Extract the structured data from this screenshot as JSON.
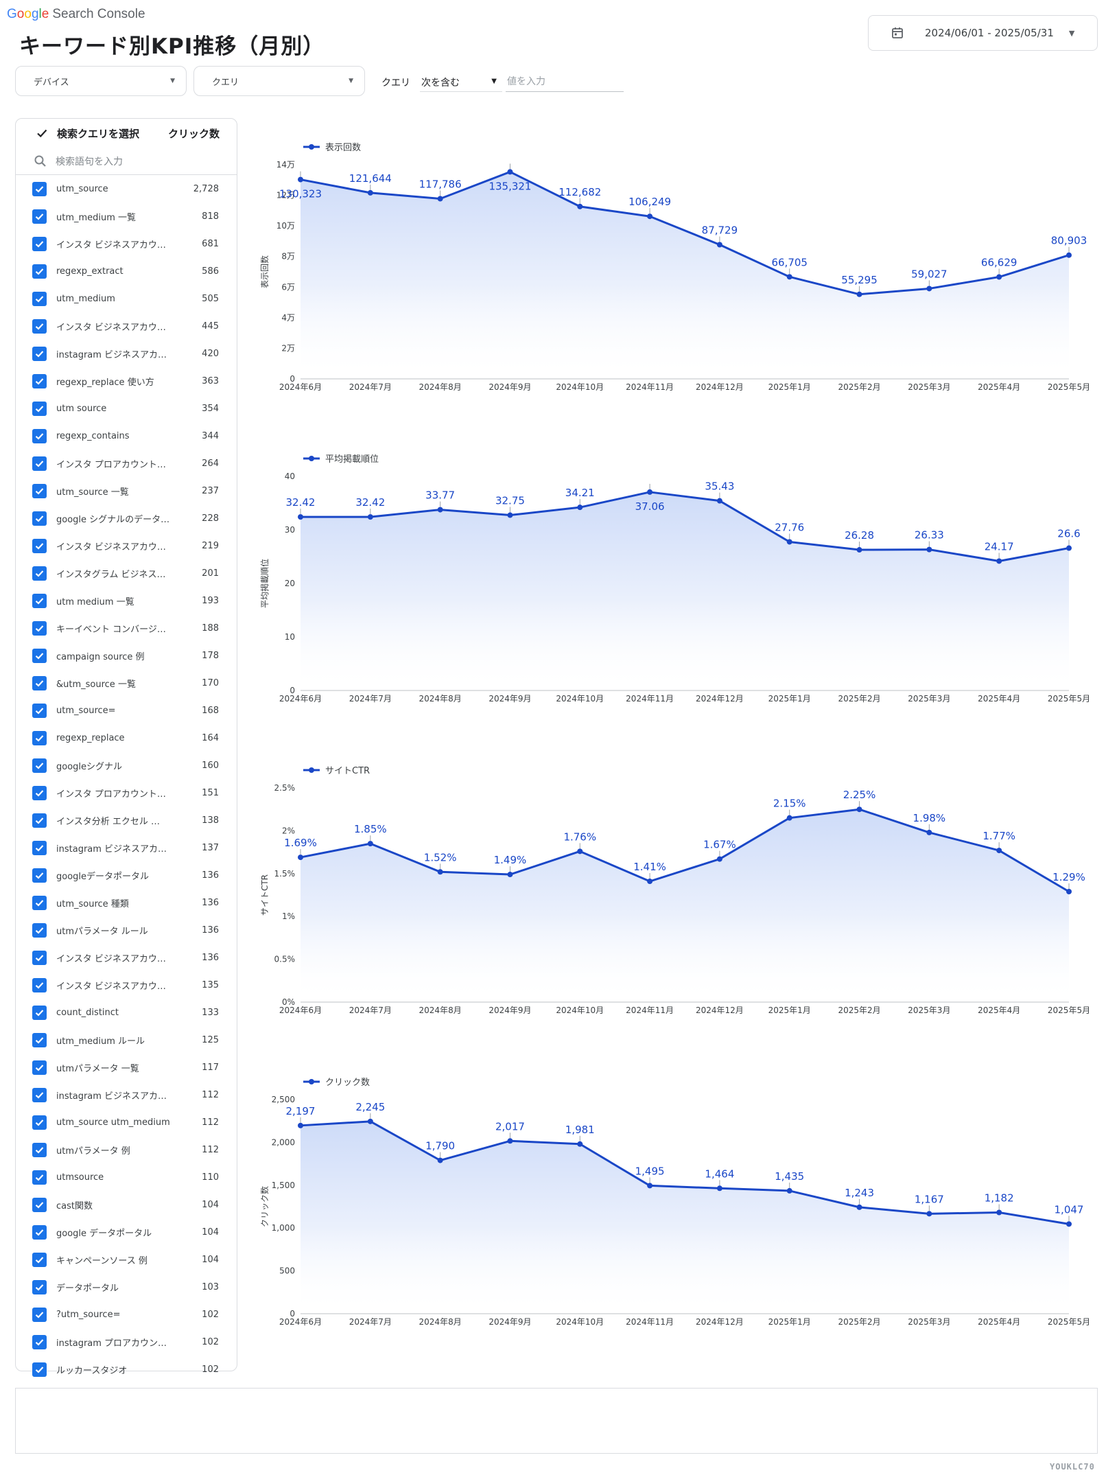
{
  "brand": {
    "g1": "G",
    "g2": "o",
    "g3": "o",
    "g4": "g",
    "g5": "l",
    "g6": "e",
    "product": "Search Console"
  },
  "page_title": "キーワード別KPI推移（月別）",
  "date_range": "2024/06/01 - 2025/05/31",
  "filters": {
    "device": "デバイス",
    "query": "クエリ",
    "query_label": "クエリ",
    "operator": "次を含む",
    "value_placeholder": "値を入力"
  },
  "panel": {
    "header_label": "検索クエリを選択",
    "clicks_header": "クリック数",
    "search_placeholder": "検索語句を入力",
    "rows": [
      {
        "label": "utm_source",
        "value": "2,728"
      },
      {
        "label": "utm_medium 一覧",
        "value": "818"
      },
      {
        "label": "インスタ ビジネスアカウ…",
        "value": "681"
      },
      {
        "label": "regexp_extract",
        "value": "586"
      },
      {
        "label": "utm_medium",
        "value": "505"
      },
      {
        "label": "インスタ ビジネスアカウ…",
        "value": "445"
      },
      {
        "label": "instagram ビジネスアカ…",
        "value": "420"
      },
      {
        "label": "regexp_replace 使い方",
        "value": "363"
      },
      {
        "label": "utm source",
        "value": "354"
      },
      {
        "label": "regexp_contains",
        "value": "344"
      },
      {
        "label": "インスタ プロアカウント…",
        "value": "264"
      },
      {
        "label": "utm_source 一覧",
        "value": "237"
      },
      {
        "label": "google シグナルのデータ…",
        "value": "228"
      },
      {
        "label": "インスタ ビジネスアカウ…",
        "value": "219"
      },
      {
        "label": "インスタグラム ビジネス…",
        "value": "201"
      },
      {
        "label": "utm medium 一覧",
        "value": "193"
      },
      {
        "label": "キーイベント コンバージ…",
        "value": "188"
      },
      {
        "label": "campaign source 例",
        "value": "178"
      },
      {
        "label": "&utm_source 一覧",
        "value": "170"
      },
      {
        "label": "utm_source=",
        "value": "168"
      },
      {
        "label": "regexp_replace",
        "value": "164"
      },
      {
        "label": "googleシグナル",
        "value": "160"
      },
      {
        "label": "インスタ プロアカウント…",
        "value": "151"
      },
      {
        "label": "インスタ分析 エクセル …",
        "value": "138"
      },
      {
        "label": "instagram ビジネスアカ…",
        "value": "137"
      },
      {
        "label": "googleデータポータル",
        "value": "136"
      },
      {
        "label": "utm_source 種類",
        "value": "136"
      },
      {
        "label": "utmパラメータ ルール",
        "value": "136"
      },
      {
        "label": "インスタ ビジネスアカウ…",
        "value": "136"
      },
      {
        "label": "インスタ ビジネスアカウ…",
        "value": "135"
      },
      {
        "label": "count_distinct",
        "value": "133"
      },
      {
        "label": "utm_medium ルール",
        "value": "125"
      },
      {
        "label": "utmパラメータ 一覧",
        "value": "117"
      },
      {
        "label": "instagram ビジネスアカ…",
        "value": "112"
      },
      {
        "label": "utm_source utm_medium",
        "value": "112"
      },
      {
        "label": "utmパラメータ 例",
        "value": "112"
      },
      {
        "label": "utmsource",
        "value": "110"
      },
      {
        "label": "cast関数",
        "value": "104"
      },
      {
        "label": "google データポータル",
        "value": "104"
      },
      {
        "label": "キャンペーンソース 例",
        "value": "104"
      },
      {
        "label": "データポータル",
        "value": "103"
      },
      {
        "label": "?utm_source=",
        "value": "102"
      },
      {
        "label": "instagram プロアカウン…",
        "value": "102"
      },
      {
        "label": "ルッカースタジオ",
        "value": "102"
      }
    ]
  },
  "colors": {
    "line": "#1a47c7",
    "accent": "#1a73e8",
    "fill_top": "#c5d5f7"
  },
  "chart_data": [
    {
      "type": "area",
      "series_name": "表示回数",
      "ylabel": "表示回数",
      "categories": [
        "2024年6月",
        "2024年7月",
        "2024年8月",
        "2024年9月",
        "2024年10月",
        "2024年11月",
        "2024年12月",
        "2025年1月",
        "2025年2月",
        "2025年3月",
        "2025年4月",
        "2025年5月"
      ],
      "values": [
        130323,
        121644,
        117786,
        135321,
        112682,
        106249,
        87729,
        66705,
        55295,
        59027,
        66629,
        80903
      ],
      "labels": [
        "130,323",
        "121,644",
        "117,786",
        "135,321",
        "112,682",
        "106,249",
        "87,729",
        "66,705",
        "55,295",
        "59,027",
        "66,629",
        "80,903"
      ],
      "label_pos": [
        "below",
        "above",
        "above",
        "below",
        "above",
        "above",
        "above",
        "above",
        "above",
        "above",
        "above",
        "above"
      ],
      "ylim": [
        0,
        140000
      ],
      "ticks": [
        0,
        20000,
        40000,
        60000,
        80000,
        100000,
        120000,
        140000
      ],
      "tick_labels": [
        "0",
        "2万",
        "4万",
        "6万",
        "8万",
        "10万",
        "12万",
        "14万"
      ]
    },
    {
      "type": "area",
      "series_name": "平均掲載順位",
      "ylabel": "平均掲載順位",
      "categories": [
        "2024年6月",
        "2024年7月",
        "2024年8月",
        "2024年9月",
        "2024年10月",
        "2024年11月",
        "2024年12月",
        "2025年1月",
        "2025年2月",
        "2025年3月",
        "2025年4月",
        "2025年5月"
      ],
      "values": [
        32.42,
        32.42,
        33.77,
        32.75,
        34.21,
        37.06,
        35.43,
        27.76,
        26.28,
        26.33,
        24.17,
        26.6
      ],
      "labels": [
        "32.42",
        "32.42",
        "33.77",
        "32.75",
        "34.21",
        "37.06",
        "35.43",
        "27.76",
        "26.28",
        "26.33",
        "24.17",
        "26.6"
      ],
      "label_pos": [
        "above",
        "above",
        "above",
        "above",
        "above",
        "below",
        "above",
        "above",
        "above",
        "above",
        "above",
        "above"
      ],
      "ylim": [
        0,
        40
      ],
      "ticks": [
        0,
        10,
        20,
        30,
        40
      ],
      "tick_labels": [
        "0",
        "10",
        "20",
        "30",
        "40"
      ]
    },
    {
      "type": "area",
      "series_name": "サイトCTR",
      "ylabel": "サイトCTR",
      "categories": [
        "2024年6月",
        "2024年7月",
        "2024年8月",
        "2024年9月",
        "2024年10月",
        "2024年11月",
        "2024年12月",
        "2025年1月",
        "2025年2月",
        "2025年3月",
        "2025年4月",
        "2025年5月"
      ],
      "values": [
        1.69,
        1.85,
        1.52,
        1.49,
        1.76,
        1.41,
        1.67,
        2.15,
        2.25,
        1.98,
        1.77,
        1.29
      ],
      "labels": [
        "1.69%",
        "1.85%",
        "1.52%",
        "1.49%",
        "1.76%",
        "1.41%",
        "1.67%",
        "2.15%",
        "2.25%",
        "1.98%",
        "1.77%",
        "1.29%"
      ],
      "label_pos": [
        "above",
        "above",
        "above",
        "above",
        "above",
        "above",
        "above",
        "above",
        "above",
        "above",
        "above",
        "above"
      ],
      "ylim": [
        0,
        2.5
      ],
      "ticks": [
        0,
        0.5,
        1,
        1.5,
        2,
        2.5
      ],
      "tick_labels": [
        "0%",
        "0.5%",
        "1%",
        "1.5%",
        "2%",
        "2.5%"
      ]
    },
    {
      "type": "area",
      "series_name": "クリック数",
      "ylabel": "クリック数",
      "categories": [
        "2024年6月",
        "2024年7月",
        "2024年8月",
        "2024年9月",
        "2024年10月",
        "2024年11月",
        "2024年12月",
        "2025年1月",
        "2025年2月",
        "2025年3月",
        "2025年4月",
        "2025年5月"
      ],
      "values": [
        2197,
        2245,
        1790,
        2017,
        1981,
        1495,
        1464,
        1435,
        1243,
        1167,
        1182,
        1047
      ],
      "labels": [
        "2,197",
        "2,245",
        "1,790",
        "2,017",
        "1,981",
        "1,495",
        "1,464",
        "1,435",
        "1,243",
        "1,167",
        "1,182",
        "1,047"
      ],
      "label_pos": [
        "above",
        "above",
        "above",
        "above",
        "above",
        "above",
        "above",
        "above",
        "above",
        "above",
        "above",
        "above"
      ],
      "ylim": [
        0,
        2500
      ],
      "ticks": [
        0,
        500,
        1000,
        1500,
        2000,
        2500
      ],
      "tick_labels": [
        "0",
        "500",
        "1,000",
        "1,500",
        "2,000",
        "2,500"
      ]
    }
  ],
  "watermark": "YOUKLC70"
}
